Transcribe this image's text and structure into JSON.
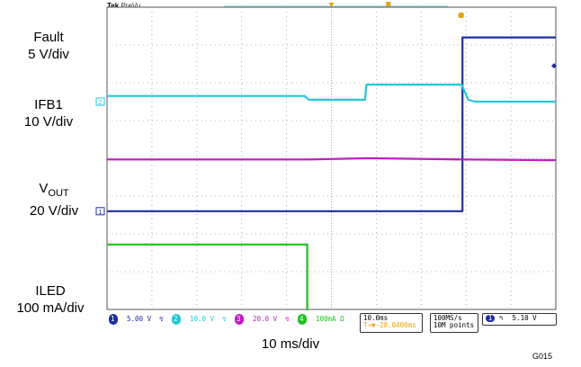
{
  "scope": {
    "brand": "Tek",
    "mode": "PreVu"
  },
  "labels": {
    "fault": "Fault",
    "fault_scale": "5 V/div",
    "ifb1": "IFB1",
    "ifb1_scale": "10 V/div",
    "vout_main": "V",
    "vout_sub": "OUT",
    "vout_scale": "20 V/div",
    "iled": "ILED",
    "iled_scale": "100 mA/div"
  },
  "channels": [
    {
      "num": "1",
      "scale": "5.00 V",
      "color": "#1f2fa0"
    },
    {
      "num": "2",
      "scale": "10.0 V",
      "color": "#22c8d8"
    },
    {
      "num": "3",
      "scale": "20.0 V",
      "color": "#c21cc2"
    },
    {
      "num": "4",
      "scale": "100mA Ω",
      "color": "#1fbf1f"
    }
  ],
  "timebase": {
    "scale": "10.0ms",
    "offset": "T→▼-28.0400ms"
  },
  "acquisition": {
    "rate": "100MS/s",
    "points": "10M points"
  },
  "trigger": {
    "channel": "1",
    "level": "5.10 V"
  },
  "xlabel": "10 ms/div",
  "figure_id": "G015",
  "chart_data": {
    "type": "line",
    "x_unit": "ms",
    "xlim": [
      0,
      100
    ],
    "divisions": {
      "x": 10,
      "y": 8
    },
    "series": [
      {
        "name": "Fault",
        "color": "#1f2fa0",
        "x": [
          0,
          79.2,
          79.2,
          100
        ],
        "y": [
          2.6,
          2.6,
          7.2,
          7.2
        ]
      },
      {
        "name": "IFB1",
        "color": "#22c8d8",
        "x": [
          0,
          44,
          45,
          57.5,
          57.8,
          79,
          80.5,
          82,
          100
        ],
        "y": [
          5.65,
          5.65,
          5.55,
          5.55,
          5.95,
          5.95,
          5.55,
          5.5,
          5.5
        ]
      },
      {
        "name": "VOUT",
        "color": "#c21cc2",
        "x": [
          0,
          45,
          57.5,
          60,
          79,
          100
        ],
        "y": [
          3.97,
          3.97,
          4.0,
          4.0,
          3.97,
          3.95
        ]
      },
      {
        "name": "ILED",
        "color": "#1fbf1f",
        "x": [
          0,
          44.6,
          44.6,
          100
        ],
        "y": [
          1.72,
          1.72,
          -0.39,
          -0.39
        ]
      }
    ]
  }
}
